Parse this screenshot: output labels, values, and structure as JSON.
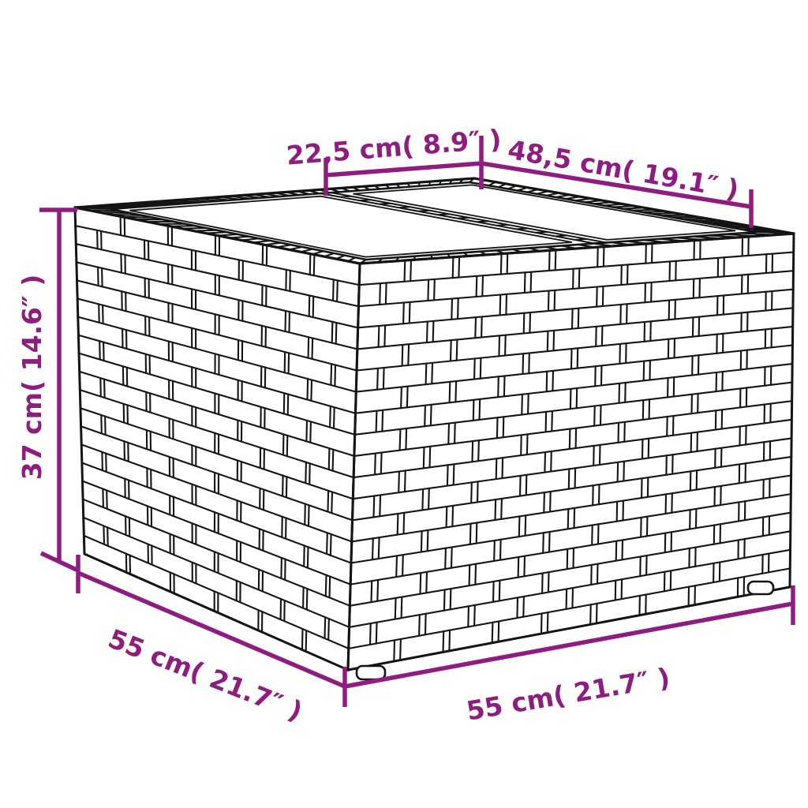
{
  "colors": {
    "accent": "#8F1D80",
    "ink": "#141414",
    "background": "#FFFFFF"
  },
  "dimensions": {
    "top_panel": {
      "label": "22,5 cm( 8.9″ )",
      "cm": "22,5",
      "inches": "8.9"
    },
    "top_glass": {
      "label": "48,5 cm( 19.1″ )",
      "cm": "48,5",
      "inches": "19.1"
    },
    "height": {
      "label": "37 cm( 14.6″ )",
      "cm": "37",
      "inches": "14.6"
    },
    "side_depth": {
      "label": "55 cm( 21.7″ )",
      "cm": "55",
      "inches": "21.7"
    },
    "front_width": {
      "label": "55 cm( 21.7″ )",
      "cm": "55",
      "inches": "21.7"
    }
  }
}
